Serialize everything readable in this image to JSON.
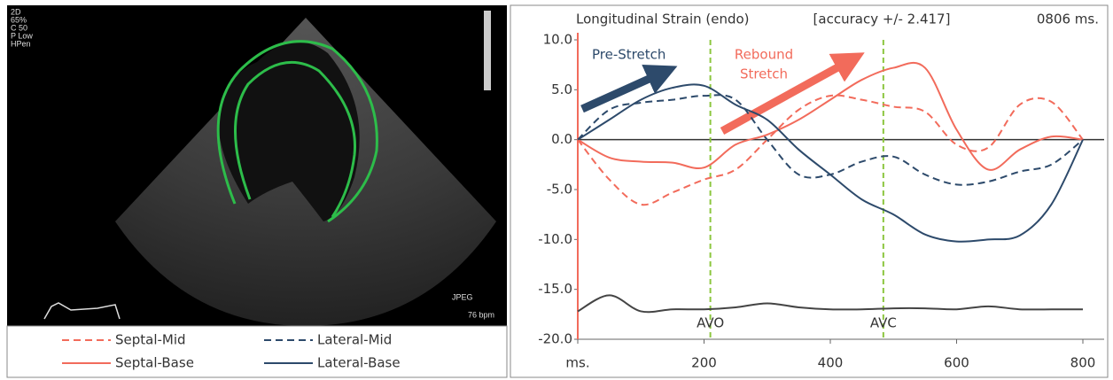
{
  "image": {
    "labels": [
      "2D",
      "65%",
      "C 50",
      "P Low",
      "HPen",
      "JPEG",
      "76 bpm"
    ]
  },
  "chart_data": {
    "type": "line",
    "title": "Longitudinal Strain (endo)",
    "subtitle": "[accuracy +/- 2.417]",
    "time_label": "0806 ms.",
    "x": [
      0,
      50,
      100,
      150,
      200,
      250,
      300,
      350,
      400,
      450,
      500,
      550,
      600,
      650,
      700,
      750,
      800
    ],
    "xlim": [
      0,
      800
    ],
    "xticks": [
      {
        "value": 0,
        "label": "ms."
      },
      200,
      400,
      600,
      800
    ],
    "ylim": [
      -20,
      10
    ],
    "yticks": [
      {
        "value": 10,
        "label": "10.0"
      },
      {
        "value": 5,
        "label": "5.0"
      },
      {
        "value": 0,
        "label": "0.0"
      },
      {
        "value": -5,
        "label": "-5.0"
      },
      {
        "value": -10,
        "label": "-10.0"
      },
      {
        "value": -15,
        "label": "-15.0"
      },
      {
        "value": -20,
        "label": "-20.0"
      }
    ],
    "series": [
      {
        "name": "Septal-Mid",
        "color": "#f26b5b",
        "dash": true,
        "values": [
          0,
          -4,
          -6.5,
          -5.3,
          -4,
          -3,
          0,
          3,
          4.4,
          4,
          3.3,
          2.8,
          -0.5,
          -0.8,
          3.5,
          3.8,
          0
        ]
      },
      {
        "name": "Lateral-Mid",
        "color": "#2d4a6b",
        "dash": true,
        "values": [
          0,
          3,
          3.7,
          4,
          4.4,
          4,
          0,
          -3.5,
          -3.5,
          -2.2,
          -1.7,
          -3.5,
          -4.5,
          -4.2,
          -3.2,
          -2.5,
          0
        ]
      },
      {
        "name": "Septal-Base",
        "color": "#f26b5b",
        "dash": false,
        "values": [
          0,
          -1.8,
          -2.2,
          -2.3,
          -2.8,
          -0.5,
          0.5,
          2,
          4,
          6,
          7.2,
          7.2,
          1,
          -3,
          -1,
          0.3,
          0
        ]
      },
      {
        "name": "Lateral-Base",
        "color": "#2d4a6b",
        "dash": false,
        "values": [
          0,
          2,
          4,
          5.2,
          5.4,
          3.5,
          2,
          -1,
          -3.5,
          -6,
          -7.5,
          -9.5,
          -10.2,
          -10,
          -9.6,
          -6.5,
          0
        ]
      }
    ],
    "ecg": {
      "color": "#444444",
      "values": [
        -17.2,
        -15.6,
        -17.2,
        -17,
        -17,
        -16.8,
        -16.4,
        -16.8,
        -17,
        -17,
        -16.9,
        -16.9,
        -17,
        -16.7,
        -17,
        -17,
        -17
      ]
    },
    "events": [
      {
        "label": "AVO",
        "x": 210
      },
      {
        "label": "AVC",
        "x": 484
      }
    ],
    "annotations": [
      {
        "text": "Pre-Stretch",
        "color": "#2d4a6b"
      },
      {
        "text": "Rebound",
        "color": "#f26b5b"
      },
      {
        "text": "Stretch",
        "color": "#f26b5b"
      }
    ]
  }
}
